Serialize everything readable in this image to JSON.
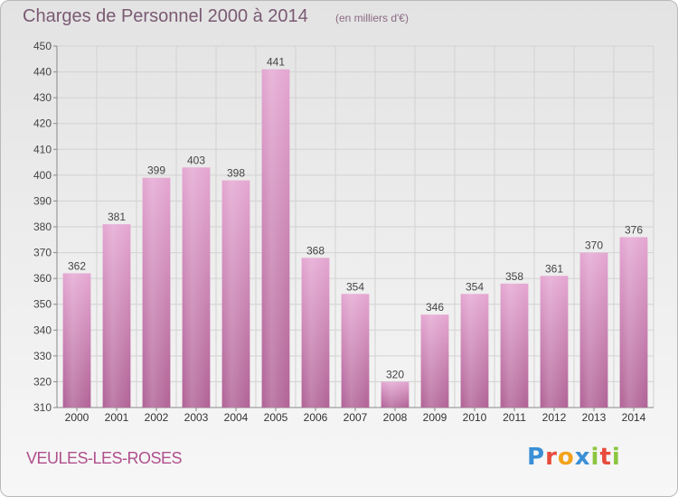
{
  "header": {
    "title": "Charges de Personnel 2000 à 2014",
    "subtitle": "(en milliers d'€)"
  },
  "footer": {
    "commune": "VEULES-LES-ROSES",
    "logo_text": "Proxiti",
    "logo_letters": [
      {
        "ch": "P",
        "color": "#3a8fd6"
      },
      {
        "ch": "r",
        "color": "#e84b3c"
      },
      {
        "ch": "o",
        "color": "#f2a31b"
      },
      {
        "ch": "x",
        "color": "#3a8fd6"
      },
      {
        "ch": "i",
        "color": "#8cc63f"
      },
      {
        "ch": "t",
        "color": "#e84b3c"
      },
      {
        "ch": "i",
        "color": "#8cc63f"
      }
    ]
  },
  "colors": {
    "bar_light": "#e4a6d1",
    "bar_dark": "#b06296",
    "title": "#7a5a73",
    "commune": "#b0508d",
    "grid": "#cfcfcf"
  },
  "chart_data": {
    "type": "bar",
    "title": "Charges de Personnel 2000 à 2014",
    "subtitle": "(en milliers d'€)",
    "xlabel": "",
    "ylabel": "",
    "categories": [
      "2000",
      "2001",
      "2002",
      "2003",
      "2004",
      "2005",
      "2006",
      "2007",
      "2008",
      "2009",
      "2010",
      "2011",
      "2012",
      "2013",
      "2014"
    ],
    "values": [
      362,
      381,
      399,
      403,
      398,
      441,
      368,
      354,
      320,
      346,
      354,
      358,
      361,
      370,
      376
    ],
    "ylim": [
      310,
      450
    ],
    "yticks": [
      310,
      320,
      330,
      340,
      350,
      360,
      370,
      380,
      390,
      400,
      410,
      420,
      430,
      440,
      450
    ],
    "grid": true,
    "data_labels": true
  }
}
